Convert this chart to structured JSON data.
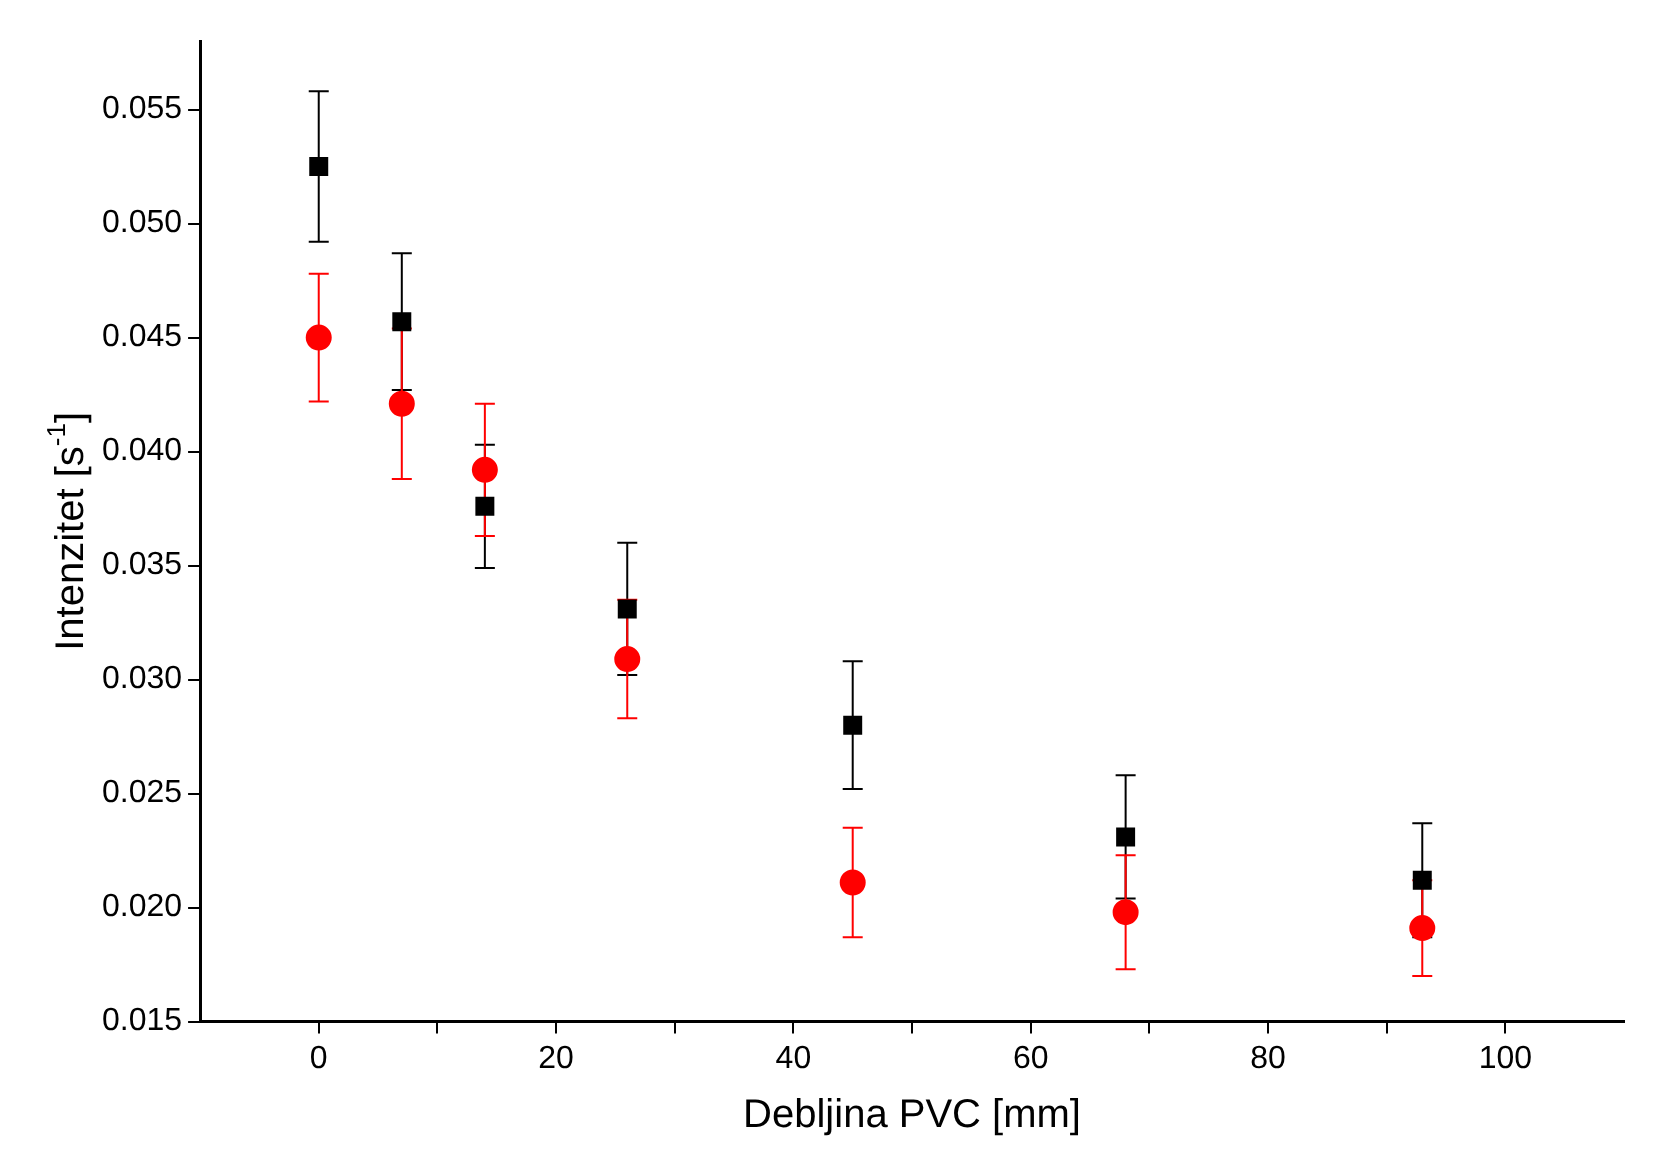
{
  "chart_data": {
    "type": "scatter",
    "xlabel": "Debljina PVC [mm]",
    "ylabel": "Intenzitet [s$^{-1}$]",
    "xlim": [
      -10,
      110
    ],
    "xticks": [
      0,
      {
        "value": 10,
        "label": null
      },
      20,
      {
        "value": 30,
        "label": null
      },
      40,
      {
        "value": 50,
        "label": null
      },
      60,
      {
        "value": 70,
        "label": null
      },
      80,
      {
        "value": 90,
        "label": null
      },
      100
    ],
    "ylim": [
      0.015,
      0.058
    ],
    "yticks": [
      0.015,
      {
        "value": 0.02,
        "label": "0.020"
      },
      0.025,
      {
        "value": 0.03,
        "label": "0.030"
      },
      0.035,
      {
        "value": 0.04,
        "label": "0.040"
      },
      0.045,
      {
        "value": 0.05,
        "label": "0.050"
      },
      0.055
    ],
    "grid": false,
    "legend": false,
    "series": [
      {
        "color": "#000000",
        "marker": "square",
        "x": [
          0,
          7,
          14,
          26,
          45,
          68,
          93
        ],
        "values": [
          0.0525,
          0.0457,
          0.0376,
          0.0331,
          0.028,
          0.0231,
          0.0212
        ],
        "errors": [
          0.0033,
          0.003,
          0.0027,
          0.0029,
          0.0028,
          0.0027,
          0.0025
        ]
      },
      {
        "color": "#ff0000",
        "marker": "circle",
        "x": [
          0,
          7,
          14,
          26,
          45,
          68,
          93
        ],
        "values": [
          0.045,
          0.0421,
          0.0392,
          0.0309,
          0.0211,
          0.0198,
          0.0191
        ],
        "errors": [
          0.0028,
          0.0033,
          0.0029,
          0.0026,
          0.0024,
          0.0025,
          0.0021
        ]
      }
    ]
  }
}
